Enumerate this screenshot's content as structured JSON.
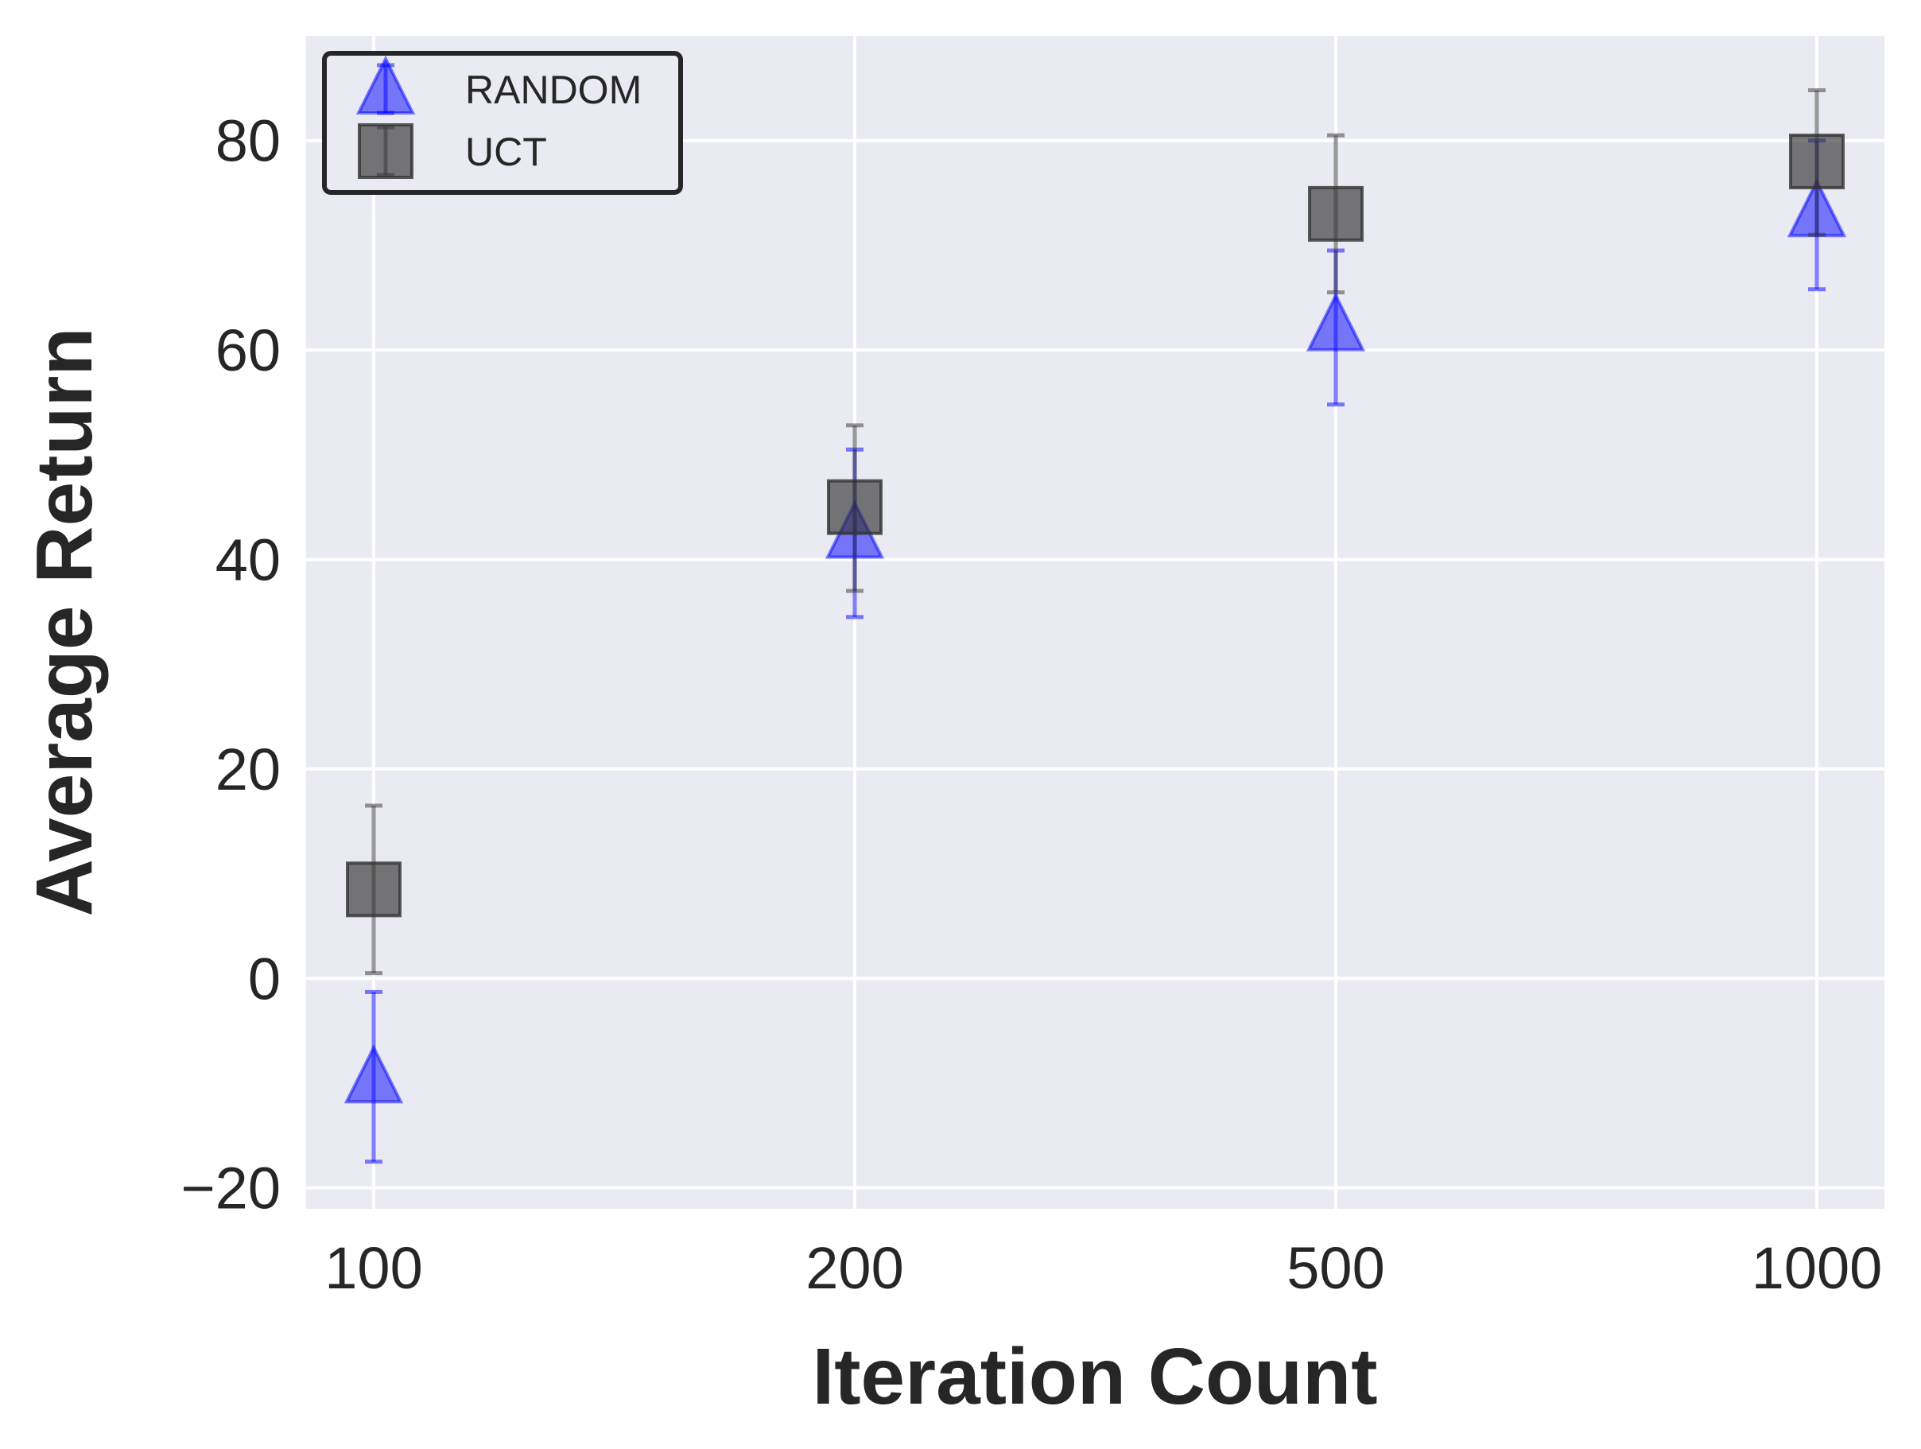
{
  "chart_data": {
    "type": "scatter",
    "title": "",
    "xlabel": "Iteration Count",
    "ylabel": "Average Return",
    "categories": [
      "100",
      "200",
      "500",
      "1000"
    ],
    "x_scale": "categorical",
    "ylim": [
      -22,
      90
    ],
    "yticks": [
      -20,
      0,
      20,
      40,
      60,
      80
    ],
    "ytick_labels": [
      "−20",
      "0",
      "20",
      "40",
      "60",
      "80"
    ],
    "grid": true,
    "legend_position": "top-left",
    "series": [
      {
        "name": "RANDOM",
        "marker": "triangle",
        "color": "#0000ff",
        "values": [
          -9.5,
          42.5,
          62.3,
          73.2
        ],
        "error_low": [
          -17.5,
          34.5,
          54.8,
          65.8
        ],
        "error_high": [
          -1.3,
          50.5,
          69.5,
          80.0
        ]
      },
      {
        "name": "UCT",
        "marker": "square",
        "color": "#333333",
        "values": [
          8.5,
          45.0,
          73.0,
          78.0
        ],
        "error_low": [
          0.5,
          37.0,
          65.5,
          71.0
        ],
        "error_high": [
          16.5,
          52.8,
          80.5,
          84.8
        ]
      }
    ],
    "plot_background": "#eaeaf2",
    "grid_color": "#ffffff"
  }
}
